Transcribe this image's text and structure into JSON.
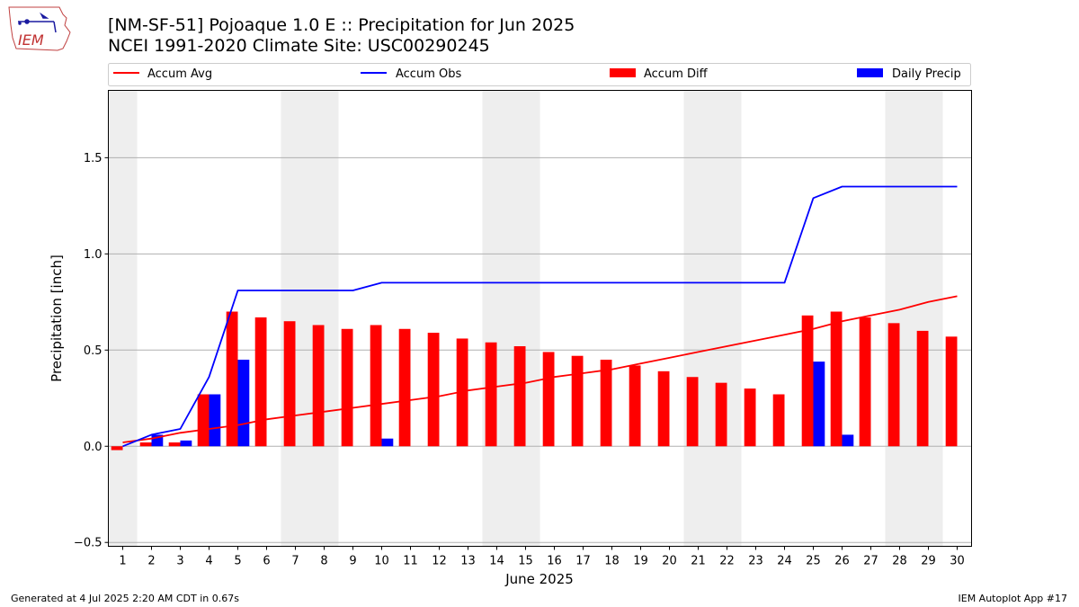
{
  "header": {
    "title_line1": "[NM-SF-51] Pojoaque 1.0 E :: Precipitation for Jun 2025",
    "title_line2": "NCEI 1991-2020 Climate Site: USC00290245"
  },
  "logo": {
    "text": "IEM",
    "icon": "iowa-state-map-logo"
  },
  "footer": {
    "left": "Generated at 4 Jul 2025 2:20 AM CDT in 0.67s",
    "right": "IEM Autoplot App #17"
  },
  "colors": {
    "accum_avg": "#ff0000",
    "accum_obs": "#0000ff",
    "accum_diff": "#ff0000",
    "daily_precip": "#0000ff",
    "weekend_shade": "#eeeeee",
    "grid": "#b0b0b0"
  },
  "chart_data": {
    "type": "bar",
    "xlabel": "June 2025",
    "ylabel": "Precipitation [inch]",
    "ylim": [
      -0.52,
      1.85
    ],
    "xlim": [
      0.5,
      30.5
    ],
    "yticks": [
      -0.5,
      0.0,
      0.5,
      1.0,
      1.5
    ],
    "ytick_labels": [
      "−0.5",
      "0.0",
      "0.5",
      "1.0",
      "1.5"
    ],
    "x": [
      1,
      2,
      3,
      4,
      5,
      6,
      7,
      8,
      9,
      10,
      11,
      12,
      13,
      14,
      15,
      16,
      17,
      18,
      19,
      20,
      21,
      22,
      23,
      24,
      25,
      26,
      27,
      28,
      29,
      30
    ],
    "xtick_labels": [
      "1",
      "2",
      "3",
      "4",
      "5",
      "6",
      "7",
      "8",
      "9",
      "10",
      "11",
      "12",
      "13",
      "14",
      "15",
      "16",
      "17",
      "18",
      "19",
      "20",
      "21",
      "22",
      "23",
      "24",
      "25",
      "26",
      "27",
      "28",
      "29",
      "30"
    ],
    "grid": "horizontal",
    "legend_placement": "top",
    "weekend_days": [
      1,
      7,
      8,
      14,
      15,
      21,
      22,
      28,
      29
    ],
    "series": [
      {
        "name": "Accum Avg",
        "kind": "line",
        "values": [
          0.02,
          0.04,
          0.07,
          0.09,
          0.11,
          0.14,
          0.16,
          0.18,
          0.2,
          0.22,
          0.24,
          0.26,
          0.29,
          0.31,
          0.33,
          0.36,
          0.38,
          0.4,
          0.43,
          0.46,
          0.49,
          0.52,
          0.55,
          0.58,
          0.61,
          0.65,
          0.68,
          0.71,
          0.75,
          0.78
        ]
      },
      {
        "name": "Accum Obs",
        "kind": "line",
        "values": [
          0.0,
          0.06,
          0.09,
          0.36,
          0.81,
          0.81,
          0.81,
          0.81,
          0.81,
          0.85,
          0.85,
          0.85,
          0.85,
          0.85,
          0.85,
          0.85,
          0.85,
          0.85,
          0.85,
          0.85,
          0.85,
          0.85,
          0.85,
          0.85,
          1.29,
          1.35,
          1.35,
          1.35,
          1.35,
          1.35
        ]
      },
      {
        "name": "Accum Diff",
        "kind": "bar",
        "values": [
          -0.02,
          0.02,
          0.02,
          0.27,
          0.7,
          0.67,
          0.65,
          0.63,
          0.61,
          0.63,
          0.61,
          0.59,
          0.56,
          0.54,
          0.52,
          0.49,
          0.47,
          0.45,
          0.42,
          0.39,
          0.36,
          0.33,
          0.3,
          0.27,
          0.68,
          0.7,
          0.67,
          0.64,
          0.6,
          0.57
        ]
      },
      {
        "name": "Daily Precip",
        "kind": "bar",
        "values": [
          0,
          0.06,
          0.03,
          0.27,
          0.45,
          0,
          0,
          0,
          0,
          0.04,
          0,
          0,
          0,
          0,
          0,
          0,
          0,
          0,
          0,
          0,
          0,
          0,
          0,
          0,
          0.44,
          0.06,
          0,
          0,
          0,
          0
        ]
      }
    ]
  }
}
